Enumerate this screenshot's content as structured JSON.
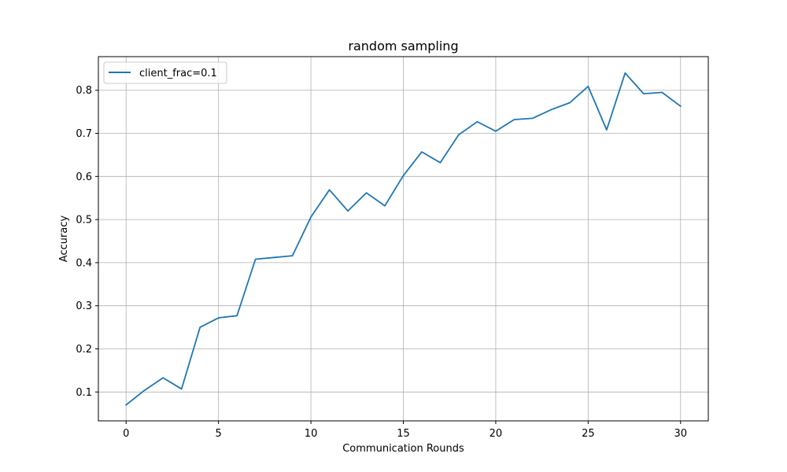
{
  "chart_data": {
    "type": "line",
    "title": "random sampling",
    "xlabel": "Communication Rounds",
    "ylabel": "Accuracy",
    "xlim": [
      -1.5,
      31.5
    ],
    "ylim": [
      0.033,
      0.878
    ],
    "xticks": [
      0,
      5,
      10,
      15,
      20,
      25,
      30
    ],
    "yticks": [
      0.1,
      0.2,
      0.3,
      0.4,
      0.5,
      0.6,
      0.7,
      0.8
    ],
    "grid": true,
    "legend_position": "top-left",
    "series": [
      {
        "name": "client_frac=0.1",
        "color": "#1f77b4",
        "x": [
          0,
          1,
          2,
          3,
          4,
          5,
          6,
          7,
          8,
          9,
          10,
          11,
          12,
          13,
          14,
          15,
          16,
          17,
          18,
          19,
          20,
          21,
          22,
          23,
          24,
          25,
          26,
          27,
          28,
          29,
          30
        ],
        "y": [
          0.07,
          0.104,
          0.133,
          0.107,
          0.25,
          0.272,
          0.277,
          0.408,
          0.412,
          0.416,
          0.506,
          0.569,
          0.52,
          0.562,
          0.532,
          0.602,
          0.657,
          0.632,
          0.697,
          0.727,
          0.705,
          0.732,
          0.735,
          0.755,
          0.771,
          0.809,
          0.708,
          0.84,
          0.792,
          0.795,
          0.763
        ]
      }
    ]
  }
}
